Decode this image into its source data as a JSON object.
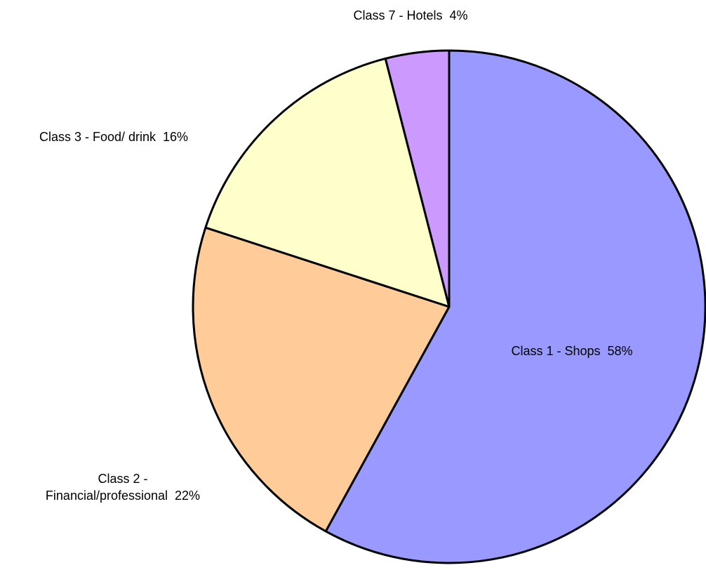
{
  "chart_data": {
    "type": "pie",
    "categories": [
      "Class 1 - Shops",
      "Class 2 - Financial/professional",
      "Class 3 - Food/ drink",
      "Class 7 - Hotels"
    ],
    "values": [
      58,
      22,
      16,
      4
    ],
    "value_labels": [
      "58%",
      "22%",
      "16%",
      "4%"
    ],
    "colors": [
      "#9999ff",
      "#ffcc99",
      "#ffffcc",
      "#cc99ff"
    ]
  }
}
